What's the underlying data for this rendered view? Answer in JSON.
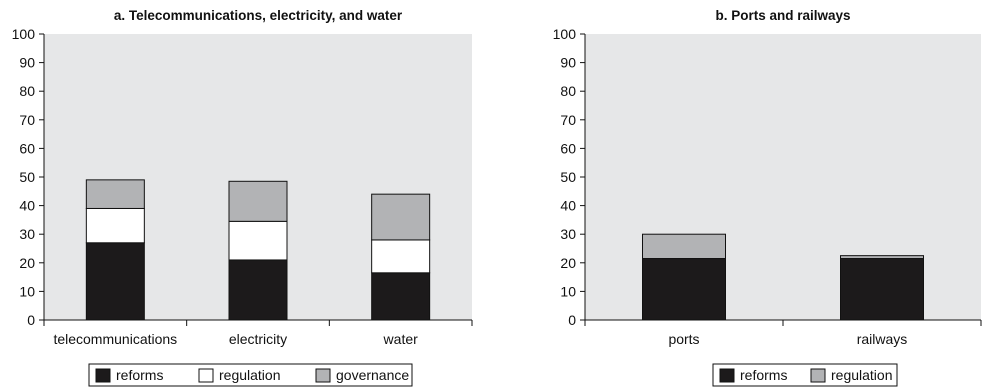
{
  "chart_data": [
    {
      "type": "bar",
      "stacked": true,
      "title": "a. Telecommunications, electricity, and water",
      "categories": [
        "telecommunications",
        "electricity",
        "water"
      ],
      "series": [
        {
          "name": "reforms",
          "values": [
            27,
            21,
            16.5
          ]
        },
        {
          "name": "regulation",
          "values": [
            12,
            13.5,
            11.5
          ]
        },
        {
          "name": "governance",
          "values": [
            10,
            14,
            16
          ]
        }
      ],
      "ylim": [
        0,
        100
      ],
      "yticks": [
        "0",
        "10",
        "20",
        "30",
        "40",
        "50",
        "60",
        "70",
        "80",
        "90",
        "100"
      ],
      "grid": false,
      "legend_position": "bottom",
      "colors": {
        "reforms": "#1c1a1b",
        "regulation": "#ffffff",
        "governance": "#b2b3b5",
        "plot_bg": "#e6e7e8"
      }
    },
    {
      "type": "bar",
      "stacked": true,
      "title": "b. Ports and railways",
      "categories": [
        "ports",
        "railways"
      ],
      "series": [
        {
          "name": "reforms",
          "values": [
            21.5,
            21.5
          ]
        },
        {
          "name": "regulation",
          "values": [
            8.5,
            1
          ]
        }
      ],
      "ylim": [
        0,
        100
      ],
      "yticks": [
        "0",
        "10",
        "20",
        "30",
        "40",
        "50",
        "60",
        "70",
        "80",
        "90",
        "100"
      ],
      "grid": false,
      "legend_position": "bottom",
      "colors": {
        "reforms": "#1c1a1b",
        "regulation": "#b2b3b5",
        "plot_bg": "#e6e7e8"
      }
    }
  ]
}
